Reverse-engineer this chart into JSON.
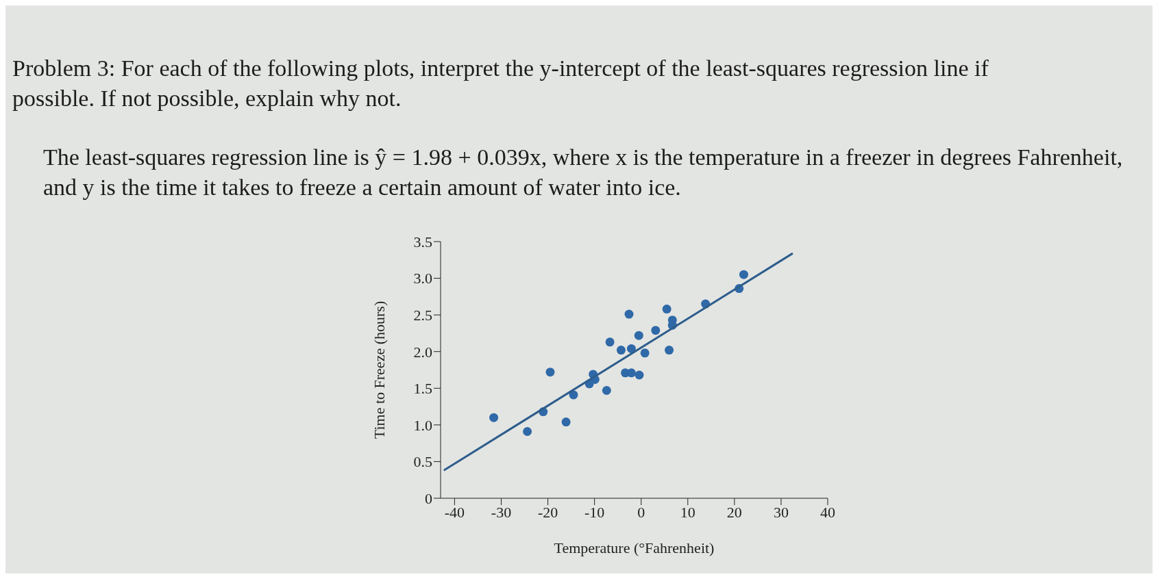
{
  "chart_data": {
    "type": "scatter",
    "title": "Problem 3: For each of the following plots, interpret the y-intercept of the least-squares regression line if possible. If not possible, explain why not.",
    "subtitle": "The least-squares regression line is ŷ = 1.98 + 0.039x, where x is the temperature in a freezer in degrees Fahrenheit, and y is the time it takes to freeze a certain amount of water into ice.",
    "xlabel": "Temperature (°Fahrenheit)",
    "ylabel": "Time to Freeze (hours)",
    "xlim": [
      -43,
      40
    ],
    "xticks": [
      -40,
      -30,
      -20,
      -10,
      0,
      10,
      20,
      30,
      40
    ],
    "ylim": [
      0,
      3.5
    ],
    "yticks": [
      0,
      0.5,
      {
        "value": 1,
        "label": "1.0"
      },
      1.5,
      {
        "value": 2,
        "label": "2.0"
      },
      2.5,
      {
        "value": 3,
        "label": "3.0"
      },
      3.5
    ],
    "grid": false,
    "legend": false,
    "series": [
      {
        "marker": "circle",
        "color": "#2f69a8",
        "x": [
          -31.6,
          -24.4,
          -21.0,
          -19.5,
          -16.1,
          -14.5,
          -11.1,
          -10.3,
          -9.9,
          -7.4,
          -6.7,
          -4.3,
          -2.6,
          -2.1,
          -3.4,
          -2.1,
          -0.4,
          -0.5,
          0.8,
          3.1,
          5.5,
          6.0,
          6.7,
          6.7,
          13.8,
          21.0,
          22.0
        ],
        "values": [
          1.1,
          0.91,
          1.18,
          1.72,
          1.04,
          1.41,
          1.56,
          1.69,
          1.62,
          1.47,
          2.13,
          2.02,
          2.51,
          2.04,
          1.71,
          1.71,
          1.68,
          2.22,
          1.98,
          2.29,
          2.58,
          2.02,
          2.43,
          2.36,
          2.65,
          2.86,
          3.05
        ]
      },
      {
        "type": "line",
        "color": "#2d5d8c",
        "line_style": "solid",
        "x": [
          -42.3,
          32.5
        ],
        "values": [
          0.38,
          3.34
        ]
      }
    ]
  }
}
